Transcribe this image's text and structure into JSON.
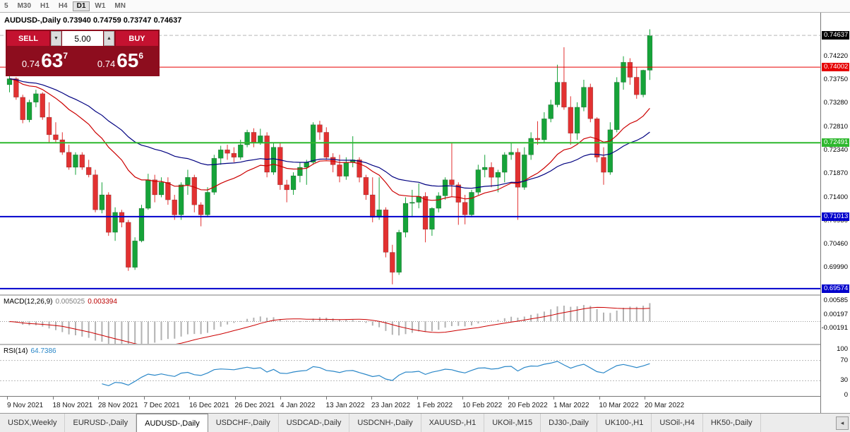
{
  "toolbar": {
    "timeframes": [
      "5",
      "M30",
      "H1",
      "H4",
      "D1",
      "W1",
      "MN"
    ],
    "active_timeframe": "D1"
  },
  "chart": {
    "title": "AUDUSD-,Daily  0.73940 0.74759 0.73747 0.74637"
  },
  "trade_panel": {
    "sell_label": "SELL",
    "buy_label": "BUY",
    "volume": "5.00",
    "volume_down_icon": "▼",
    "volume_up_icon": "▲",
    "sell_price": {
      "base": "0.74",
      "pips": "63",
      "pipette": "7"
    },
    "buy_price": {
      "base": "0.74",
      "pips": "65",
      "pipette": "6"
    }
  },
  "macd_panel": {
    "name": "MACD(12,26,9)",
    "value_main": "0.005025",
    "value_signal": "0.003394"
  },
  "rsi_panel": {
    "name": "RSI(14)",
    "value": "64.7386"
  },
  "time_axis": {
    "dates": [
      "9 Nov 2021",
      "18 Nov 2021",
      "28 Nov 2021",
      "7 Dec 2021",
      "16 Dec 2021",
      "26 Dec 2021",
      "4 Jan 2022",
      "13 Jan 2022",
      "23 Jan 2022",
      "1 Feb 2022",
      "10 Feb 2022",
      "20 Feb 2022",
      "1 Mar 2022",
      "10 Mar 2022",
      "20 Mar 2022"
    ]
  },
  "tab_bar": {
    "tabs": [
      "USDX,Weekly",
      "EURUSD-,Daily",
      "AUDUSD-,Daily",
      "USDCHF-,Daily",
      "USDCAD-,Daily",
      "USDCNH-,Daily",
      "XAUUSD-,H1",
      "UKOil-,M15",
      "DJ30-,Daily",
      "UK100-,H1",
      "USOil-,H4",
      "HK50-,Daily"
    ],
    "active_index": 2,
    "scroll_left_icon": "◂"
  },
  "colors": {
    "up": "#16a339",
    "down": "#e23131",
    "ma_fast": "#cc0000",
    "ma_slow": "#000080",
    "macd_hist": "#b2b2b2",
    "macd_signal": "#cc0000",
    "rsi_line": "#2a87c8",
    "current_box_bg": "#000000"
  },
  "chart_data": {
    "type": "candlestick",
    "symbol": "AUDUSD-",
    "timeframe": "Daily",
    "ohlc": {
      "open": "0.73940",
      "high": "0.74759",
      "low": "0.73747",
      "close": "0.74637"
    },
    "ylim": [
      0.6946,
      0.7509
    ],
    "price_ticks": [
      "0.74220",
      "0.73750",
      "0.73280",
      "0.72810",
      "0.72340",
      "0.71870",
      "0.71400",
      "0.70930",
      "0.70460",
      "0.69990"
    ],
    "current_price": {
      "value": 0.74637,
      "label": "0.74637"
    },
    "hlines": [
      {
        "value": 0.74002,
        "label": "0.74002",
        "color": "#e60000",
        "width": 1
      },
      {
        "value": 0.72491,
        "label": "0.72491",
        "color": "#2eb82e",
        "width": 2
      },
      {
        "value": 0.71013,
        "label": "0.71013",
        "color": "#0000cc",
        "width": 2
      },
      {
        "value": 0.69574,
        "label": "0.69574",
        "color": "#0000cc",
        "width": 2
      }
    ],
    "ma_fast_period": 20,
    "ma_slow_period": 40,
    "macd": {
      "fast": 12,
      "slow": 26,
      "signal": 9,
      "ylim": [
        -0.0062,
        0.0072
      ],
      "ticks": [
        "0.00585",
        "0.00197",
        "-0.00191"
      ]
    },
    "rsi": {
      "period": 14,
      "ylim": [
        0,
        100
      ],
      "ticks": [
        "100",
        "70",
        "30",
        "0"
      ],
      "levels": [
        70,
        30
      ]
    },
    "candles": [
      [
        0.7365,
        0.7382,
        0.735,
        0.7377
      ],
      [
        0.7377,
        0.738,
        0.7335,
        0.734
      ],
      [
        0.734,
        0.7345,
        0.7288,
        0.7295
      ],
      [
        0.7295,
        0.7335,
        0.729,
        0.733
      ],
      [
        0.733,
        0.7355,
        0.732,
        0.7347
      ],
      [
        0.7347,
        0.735,
        0.7295,
        0.73
      ],
      [
        0.73,
        0.733,
        0.725,
        0.7265
      ],
      [
        0.7265,
        0.729,
        0.7248,
        0.7255
      ],
      [
        0.7255,
        0.727,
        0.7225,
        0.723
      ],
      [
        0.723,
        0.7245,
        0.7195,
        0.72
      ],
      [
        0.72,
        0.723,
        0.7185,
        0.7225
      ],
      [
        0.7225,
        0.723,
        0.7195,
        0.72
      ],
      [
        0.72,
        0.7215,
        0.718,
        0.7185
      ],
      [
        0.7185,
        0.7195,
        0.711,
        0.7115
      ],
      [
        0.7115,
        0.717,
        0.7108,
        0.7145
      ],
      [
        0.7145,
        0.715,
        0.7063,
        0.707
      ],
      [
        0.707,
        0.712,
        0.7053,
        0.711
      ],
      [
        0.711,
        0.7115,
        0.708,
        0.709
      ],
      [
        0.709,
        0.7095,
        0.6993,
        0.7
      ],
      [
        0.7,
        0.706,
        0.6995,
        0.7053
      ],
      [
        0.7053,
        0.7125,
        0.705,
        0.7118
      ],
      [
        0.7118,
        0.7187,
        0.7115,
        0.7175
      ],
      [
        0.7175,
        0.7185,
        0.713,
        0.7145
      ],
      [
        0.7145,
        0.718,
        0.714,
        0.717
      ],
      [
        0.717,
        0.718,
        0.7125,
        0.7135
      ],
      [
        0.7135,
        0.7145,
        0.7095,
        0.7105
      ],
      [
        0.7105,
        0.717,
        0.7095,
        0.7165
      ],
      [
        0.7165,
        0.7195,
        0.7145,
        0.718
      ],
      [
        0.718,
        0.7185,
        0.711,
        0.7125
      ],
      [
        0.7125,
        0.713,
        0.7082,
        0.7105
      ],
      [
        0.7105,
        0.716,
        0.71,
        0.715
      ],
      [
        0.715,
        0.7225,
        0.7145,
        0.7218
      ],
      [
        0.7218,
        0.7243,
        0.7205,
        0.7235
      ],
      [
        0.7235,
        0.7245,
        0.7215,
        0.7228
      ],
      [
        0.7228,
        0.724,
        0.721,
        0.722
      ],
      [
        0.722,
        0.7255,
        0.7215,
        0.7245
      ],
      [
        0.7245,
        0.7275,
        0.724,
        0.727
      ],
      [
        0.727,
        0.7278,
        0.724,
        0.725
      ],
      [
        0.725,
        0.7277,
        0.7245,
        0.7263
      ],
      [
        0.7263,
        0.727,
        0.718,
        0.719
      ],
      [
        0.719,
        0.725,
        0.7185,
        0.724
      ],
      [
        0.724,
        0.725,
        0.7155,
        0.7165
      ],
      [
        0.7165,
        0.7175,
        0.713,
        0.7155
      ],
      [
        0.7155,
        0.719,
        0.7145,
        0.7183
      ],
      [
        0.7183,
        0.721,
        0.717,
        0.72
      ],
      [
        0.72,
        0.7215,
        0.7165,
        0.721
      ],
      [
        0.721,
        0.729,
        0.7205,
        0.7285
      ],
      [
        0.7285,
        0.7293,
        0.7255,
        0.727
      ],
      [
        0.727,
        0.728,
        0.7215,
        0.722
      ],
      [
        0.722,
        0.7228,
        0.719,
        0.7205
      ],
      [
        0.7205,
        0.7225,
        0.717,
        0.7182
      ],
      [
        0.7182,
        0.722,
        0.7175,
        0.721
      ],
      [
        0.721,
        0.7262,
        0.72,
        0.7215
      ],
      [
        0.7215,
        0.722,
        0.717,
        0.718
      ],
      [
        0.718,
        0.7185,
        0.7135,
        0.7145
      ],
      [
        0.7145,
        0.718,
        0.709,
        0.71
      ],
      [
        0.71,
        0.718,
        0.7095,
        0.7115
      ],
      [
        0.7115,
        0.712,
        0.702,
        0.703
      ],
      [
        0.703,
        0.7045,
        0.6966,
        0.699
      ],
      [
        0.699,
        0.7075,
        0.6985,
        0.707
      ],
      [
        0.707,
        0.714,
        0.706,
        0.7128
      ],
      [
        0.7128,
        0.7155,
        0.71,
        0.713
      ],
      [
        0.713,
        0.7168,
        0.7118,
        0.7142
      ],
      [
        0.7142,
        0.715,
        0.705,
        0.7076
      ],
      [
        0.7076,
        0.712,
        0.7063,
        0.7118
      ],
      [
        0.7118,
        0.715,
        0.711,
        0.7143
      ],
      [
        0.7143,
        0.718,
        0.7135,
        0.7175
      ],
      [
        0.7175,
        0.7249,
        0.714,
        0.7165
      ],
      [
        0.7165,
        0.717,
        0.7085,
        0.713
      ],
      [
        0.713,
        0.7145,
        0.7086,
        0.7105
      ],
      [
        0.7105,
        0.7155,
        0.71,
        0.715
      ],
      [
        0.715,
        0.7205,
        0.7145,
        0.7195
      ],
      [
        0.7195,
        0.7225,
        0.718,
        0.72
      ],
      [
        0.72,
        0.721,
        0.716,
        0.718
      ],
      [
        0.718,
        0.7195,
        0.715,
        0.719
      ],
      [
        0.719,
        0.723,
        0.717,
        0.7225
      ],
      [
        0.7225,
        0.725,
        0.7215,
        0.723
      ],
      [
        0.723,
        0.7238,
        0.7095,
        0.716
      ],
      [
        0.716,
        0.724,
        0.7155,
        0.7225
      ],
      [
        0.7225,
        0.727,
        0.7215,
        0.7258
      ],
      [
        0.7258,
        0.7292,
        0.7245,
        0.7255
      ],
      [
        0.7255,
        0.731,
        0.725,
        0.7297
      ],
      [
        0.7297,
        0.7335,
        0.729,
        0.7325
      ],
      [
        0.7325,
        0.7405,
        0.732,
        0.737
      ],
      [
        0.737,
        0.744,
        0.7315,
        0.732
      ],
      [
        0.732,
        0.7342,
        0.7245,
        0.7268
      ],
      [
        0.7268,
        0.733,
        0.7255,
        0.732
      ],
      [
        0.732,
        0.7375,
        0.7312,
        0.736
      ],
      [
        0.736,
        0.7367,
        0.729,
        0.7297
      ],
      [
        0.7297,
        0.73,
        0.721,
        0.722
      ],
      [
        0.722,
        0.724,
        0.7165,
        0.719
      ],
      [
        0.719,
        0.729,
        0.7185,
        0.7275
      ],
      [
        0.7275,
        0.738,
        0.727,
        0.737
      ],
      [
        0.737,
        0.7422,
        0.7355,
        0.741
      ],
      [
        0.741,
        0.7418,
        0.7365,
        0.738
      ],
      [
        0.738,
        0.74,
        0.7337,
        0.7345
      ],
      [
        0.7345,
        0.7395,
        0.734,
        0.7394
      ],
      [
        0.7394,
        0.74759,
        0.73747,
        0.74637
      ]
    ]
  }
}
